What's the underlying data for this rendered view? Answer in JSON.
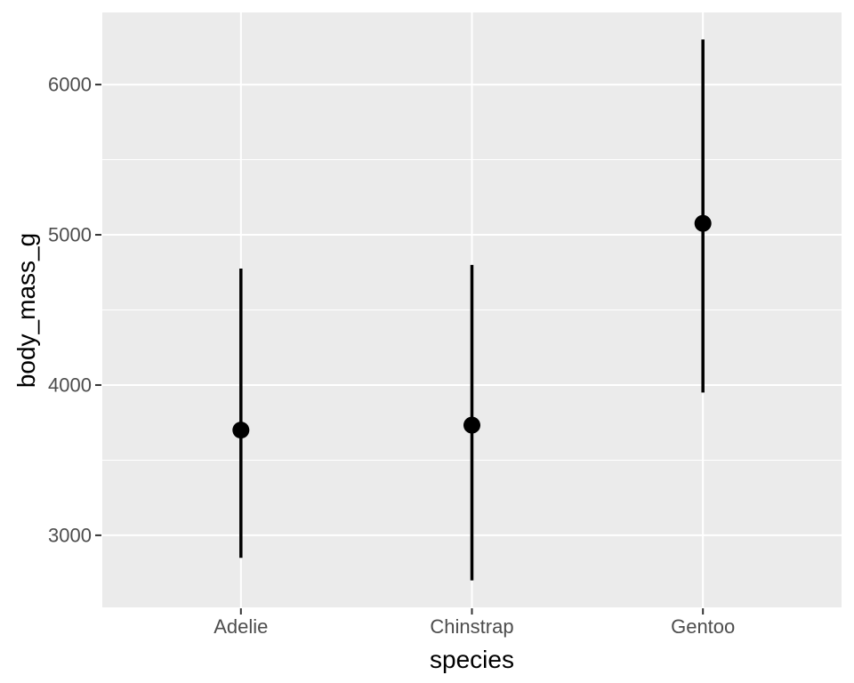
{
  "chart_data": {
    "type": "pointrange",
    "title": "",
    "xlabel": "species",
    "ylabel": "body_mass_g",
    "categories": [
      "Adelie",
      "Chinstrap",
      "Gentoo"
    ],
    "points": [
      {
        "category": "Adelie",
        "mean": 3700,
        "min": 2850,
        "max": 4775
      },
      {
        "category": "Chinstrap",
        "mean": 3733,
        "min": 2700,
        "max": 4800
      },
      {
        "category": "Gentoo",
        "mean": 5076,
        "min": 3950,
        "max": 6300
      }
    ],
    "ylim": [
      2520,
      6480
    ],
    "yticks": [
      3000,
      4000,
      5000,
      6000
    ],
    "yticks_minor": [
      3500,
      4500,
      5500
    ],
    "grid": true,
    "legend": "none",
    "style": {
      "panel_bg": "#EBEBEB",
      "grid_color": "#FFFFFF",
      "data_color": "#000000",
      "tick_label_color": "#4D4D4D",
      "tick_mark_color": "#333333",
      "axis_title_color": "#000000"
    }
  }
}
